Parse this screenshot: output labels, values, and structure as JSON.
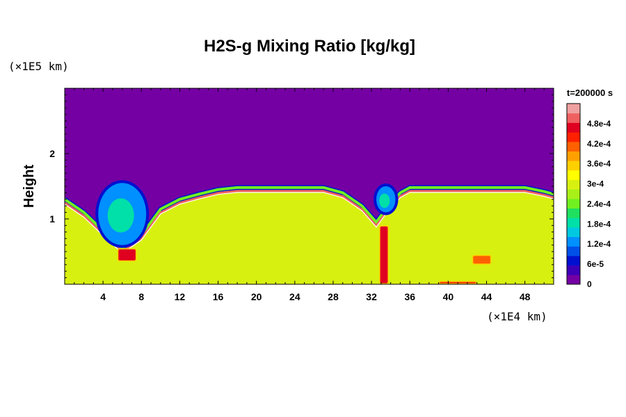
{
  "chart_data": {
    "type": "heatmap",
    "title": "H2S-g Mixing Ratio [kg/kg]",
    "ylabel": "Height",
    "xunit": "(×1E4 km)",
    "yunit": "(×1E5 km)",
    "time_label": "t=200000 s",
    "xlim": [
      0,
      51
    ],
    "ylim": [
      0,
      3
    ],
    "x_ticks": [
      4,
      8,
      12,
      16,
      20,
      24,
      28,
      32,
      36,
      40,
      44,
      48
    ],
    "x_tick_labels": [
      "4",
      "8",
      "12",
      "16",
      "20",
      "24",
      "28",
      "32",
      "36",
      "40",
      "44",
      "48"
    ],
    "y_ticks": [
      1,
      2
    ],
    "y_tick_labels": [
      "1",
      "2"
    ],
    "colorbar": {
      "min": 0,
      "max": 0.00054,
      "tick_values": [
        0,
        6e-05,
        0.00012,
        0.00018,
        0.00024,
        0.0003,
        0.00036,
        0.00042,
        0.00048
      ],
      "tick_labels": [
        "0",
        "6e-5",
        "1.2e-4",
        "1.8e-4",
        "2.4e-4",
        "3e-4",
        "3.6e-4",
        "4.2e-4",
        "4.8e-4"
      ],
      "colors": [
        "#7400a4",
        "#3c00b8",
        "#0010d0",
        "#0050e8",
        "#0090ff",
        "#00c8e0",
        "#00e0a8",
        "#20e060",
        "#70f020",
        "#a8f018",
        "#d8f010",
        "#ffff00",
        "#ffd000",
        "#ffa000",
        "#ff6000",
        "#ff2000",
        "#e00020",
        "#f06060",
        "#f0a0a0"
      ]
    },
    "field": {
      "background_value": 0,
      "interior_value": 0.0003,
      "top_boundary": [
        {
          "x": 0,
          "y": 1.3
        },
        {
          "x": 2,
          "y": 1.1
        },
        {
          "x": 4,
          "y": 0.82
        },
        {
          "x": 6,
          "y": 0.55
        },
        {
          "x": 8,
          "y": 0.75
        },
        {
          "x": 10,
          "y": 1.15
        },
        {
          "x": 12,
          "y": 1.3
        },
        {
          "x": 14,
          "y": 1.38
        },
        {
          "x": 16,
          "y": 1.45
        },
        {
          "x": 18,
          "y": 1.48
        },
        {
          "x": 27,
          "y": 1.48
        },
        {
          "x": 29,
          "y": 1.4
        },
        {
          "x": 31,
          "y": 1.2
        },
        {
          "x": 32.5,
          "y": 0.95
        },
        {
          "x": 33.5,
          "y": 1.15
        },
        {
          "x": 35,
          "y": 1.4
        },
        {
          "x": 36,
          "y": 1.48
        },
        {
          "x": 48,
          "y": 1.48
        },
        {
          "x": 50,
          "y": 1.42
        },
        {
          "x": 51,
          "y": 1.38
        }
      ],
      "low_plumes": [
        {
          "x": [
            3.5,
            8.5
          ],
          "y": [
            0.6,
            1.55
          ],
          "value": 0.00012
        },
        {
          "x": [
            32.5,
            34.5
          ],
          "y": [
            1.1,
            1.5
          ],
          "value": 0.00012
        }
      ],
      "high_features": [
        {
          "x": [
            32.8,
            33.8
          ],
          "y": [
            0.0,
            0.9
          ],
          "value": 0.00048
        },
        {
          "x": [
            42.5,
            44.5
          ],
          "y": [
            0.3,
            0.45
          ],
          "value": 0.00042
        },
        {
          "x": [
            39,
            43
          ],
          "y": [
            0.0,
            0.05
          ],
          "value": 0.00045
        },
        {
          "x": [
            5.5,
            7.5
          ],
          "y": [
            0.35,
            0.55
          ],
          "value": 0.00048
        }
      ]
    }
  }
}
